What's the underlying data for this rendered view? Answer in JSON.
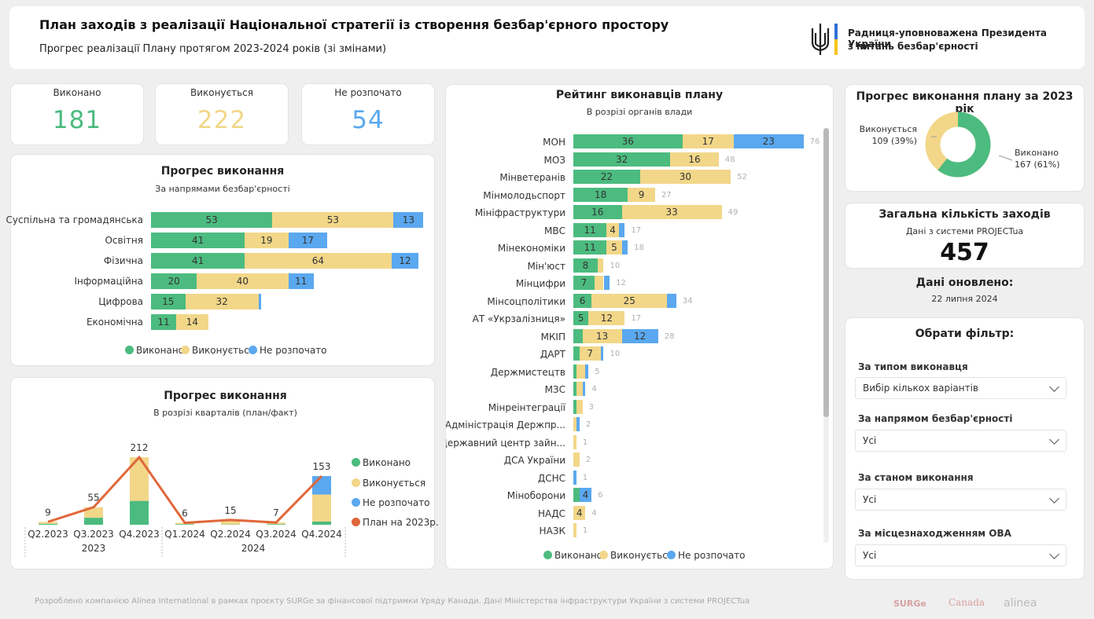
{
  "header": {
    "title": "План заходів з реалізації Національної стратегії із створення безбар'єрного простору",
    "subtitle": "Прогрес реалізації Плану протягом 2023-2024 років (зі змінами)",
    "org_line1": "Радниця-уповноважена Президента України",
    "org_line2": "з питань безбар'єрності"
  },
  "kpis": [
    {
      "label": "Виконано",
      "value": "181",
      "color": "#4cbb7f"
    },
    {
      "label": "Виконується",
      "value": "222",
      "color": "#f2d789"
    },
    {
      "label": "Не розпочато",
      "value": "54",
      "color": "#5aa8ef"
    }
  ],
  "colors": {
    "done": "#4cbb7f",
    "progress": "#f2d789",
    "not_started": "#5aa8ef",
    "plan": "#e0673a"
  },
  "legend": {
    "done": "Виконано",
    "progress": "Виконується",
    "not_started": "Не розпочато",
    "plan": "План на 2023р."
  },
  "directions": {
    "title": "Прогрес виконання",
    "subtitle": "За напрямами безбар'єрності",
    "chart_data": {
      "type": "bar",
      "orientation": "horizontal",
      "stacked": true,
      "categories": [
        "Суспільна та громадянська",
        "Освітня",
        "Фізична",
        "Інформаційна",
        "Цифрова",
        "Економічна"
      ],
      "series": [
        {
          "name": "Виконано",
          "values": [
            53,
            41,
            41,
            20,
            15,
            11
          ]
        },
        {
          "name": "Виконується",
          "values": [
            53,
            19,
            64,
            40,
            32,
            14
          ]
        },
        {
          "name": "Не розпочато",
          "values": [
            13,
            17,
            12,
            11,
            1,
            0
          ]
        }
      ],
      "legend": "bottom"
    }
  },
  "quarters": {
    "title": "Прогрес виконання",
    "subtitle": "В розрізі кварталів (план/факт)",
    "year_labels": [
      "2023",
      "2024"
    ],
    "chart_data": {
      "type": "bar",
      "stacked": true,
      "categories": [
        "Q2.2023",
        "Q3.2023",
        "Q4.2023",
        "Q1.2024",
        "Q2.2024",
        "Q3.2024",
        "Q4.2024"
      ],
      "totals": [
        9,
        55,
        212,
        6,
        15,
        7,
        153
      ],
      "series": [
        {
          "name": "Виконано",
          "values": [
            3,
            22,
            75,
            2,
            1,
            2,
            10
          ]
        },
        {
          "name": "Виконується",
          "values": [
            6,
            33,
            137,
            4,
            14,
            5,
            85
          ]
        },
        {
          "name": "Не розпочато",
          "values": [
            0,
            0,
            0,
            0,
            0,
            0,
            58
          ]
        }
      ],
      "line": {
        "name": "План на 2023р.",
        "values": [
          9,
          55,
          212,
          6,
          15,
          7,
          153
        ]
      },
      "legend": "right"
    }
  },
  "ranking": {
    "title": "Рейтинг виконавців плану",
    "subtitle": "В розрізі органів влади",
    "chart_data": {
      "type": "bar",
      "orientation": "horizontal",
      "stacked": true,
      "categories": [
        "МОН",
        "МОЗ",
        "Мінветеранів",
        "Мінмолодьспорт",
        "Мініфраструктури",
        "МВС",
        "Мінекономіки",
        "Мін'юст",
        "Мінцифри",
        "Мінсоцполітики",
        "АТ «Укрзалізниця»",
        "МКІП",
        "ДАРТ",
        "Держмистецтв",
        "МЗС",
        "Мінреінтеграції",
        "Адміністрація Держпр...",
        "Державний центр зайн...",
        "ДСА України",
        "ДСНС",
        "Міноборони",
        "НАДС",
        "НАЗК"
      ],
      "series": [
        {
          "name": "Виконано",
          "values": [
            36,
            32,
            22,
            18,
            16,
            11,
            11,
            8,
            7,
            6,
            5,
            3,
            2,
            1,
            1,
            1,
            0,
            0,
            0,
            0,
            2,
            0,
            0
          ]
        },
        {
          "name": "Виконується",
          "values": [
            17,
            16,
            30,
            9,
            33,
            4,
            5,
            2,
            3,
            25,
            12,
            13,
            7,
            3,
            2,
            2,
            1,
            1,
            2,
            0,
            0,
            4,
            1
          ]
        },
        {
          "name": "Не розпочато",
          "values": [
            23,
            0,
            0,
            0,
            0,
            2,
            2,
            0,
            2,
            3,
            0,
            12,
            1,
            1,
            1,
            0,
            1,
            0,
            0,
            1,
            4,
            0,
            0
          ]
        }
      ],
      "totals": [
        76,
        48,
        52,
        27,
        49,
        17,
        18,
        10,
        12,
        34,
        17,
        28,
        10,
        5,
        4,
        3,
        2,
        1,
        2,
        1,
        6,
        4,
        1
      ],
      "legend": "bottom"
    }
  },
  "progress2023": {
    "title": "Прогрес виконання плану за 2023 рік",
    "chart_data": {
      "type": "pie",
      "donut": true,
      "categories": [
        "Виконано",
        "Виконується"
      ],
      "values": [
        167,
        109
      ],
      "percent_labels": [
        "167 (61%)",
        "109 (39%)"
      ]
    }
  },
  "total": {
    "title": "Загальна кількість заходів",
    "subtitle": "Дані з системи PROJECTua",
    "value": "457"
  },
  "updated": {
    "label": "Дані оновлено:",
    "date": "22 липня 2024"
  },
  "filters": {
    "title": "Обрати фільтр:",
    "items": [
      {
        "label": "За типом виконавця",
        "value": "Вибір кількох варіантів"
      },
      {
        "label": "За напрямом безбар'єрності",
        "value": "Усі"
      },
      {
        "label": "За станом виконання",
        "value": "Усі"
      },
      {
        "label": "За місцезнаходженням ОВА",
        "value": "Усі"
      }
    ]
  },
  "footer": {
    "text": "Розроблено компанією Alinea International в рамках проєкту SURGe за фінансової підтримки Уряду Канади. Дані Міністерства інфраструктури України з системи PROJECTua",
    "logos": [
      "SURGe",
      "Canada",
      "alinea"
    ]
  }
}
